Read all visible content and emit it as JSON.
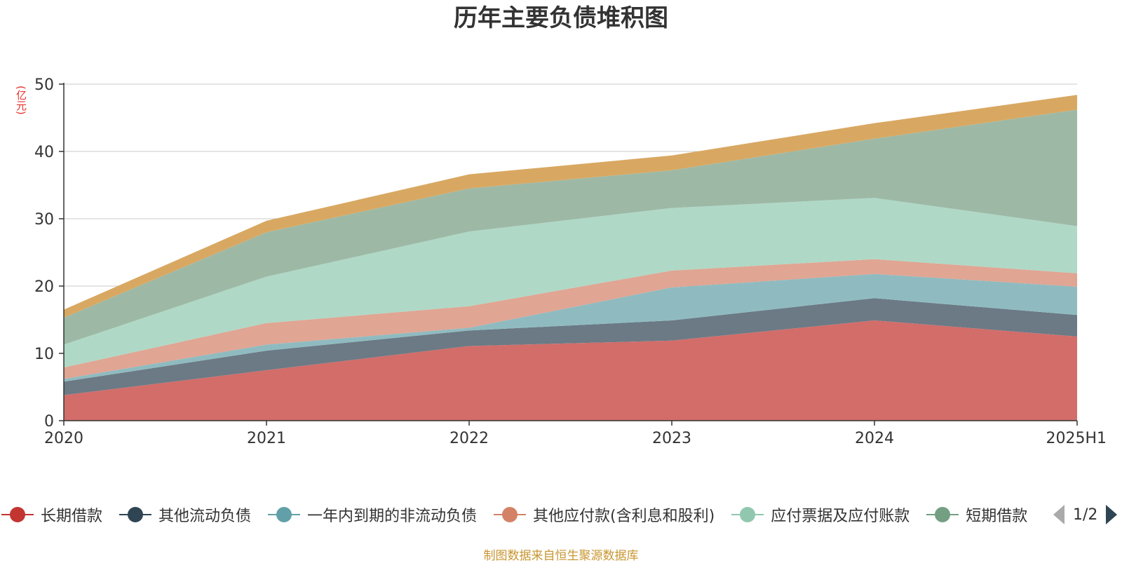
{
  "title": "历年主要负债堆积图",
  "unit_label": "(亿元)",
  "source_note": "制图数据来自恒生聚源数据库",
  "pager": {
    "text": "1/2"
  },
  "chart_data": {
    "type": "area",
    "stacked": true,
    "categories": [
      "2020",
      "2021",
      "2022",
      "2023",
      "2024",
      "2025H1"
    ],
    "ylim": [
      0,
      50
    ],
    "yticks": [
      0,
      10,
      20,
      30,
      40,
      50
    ],
    "grid": true,
    "legend_position": "bottom",
    "series": [
      {
        "name": "长期借款",
        "color": "#d26d6a",
        "legend_color": "#c23531",
        "values": [
          3.8,
          7.5,
          11.1,
          11.9,
          14.9,
          12.5
        ]
      },
      {
        "name": "其他流动负债",
        "color": "#6b7a85",
        "legend_color": "#2f4554",
        "values": [
          2.0,
          2.9,
          2.3,
          3.0,
          3.3,
          3.2
        ]
      },
      {
        "name": "一年内到期的非流动负债",
        "color": "#8fbbc0",
        "legend_color": "#61a0a8",
        "values": [
          0.4,
          0.9,
          0.4,
          4.9,
          3.6,
          4.2
        ]
      },
      {
        "name": "其他应付款(含利息和股利)",
        "color": "#e0a593",
        "legend_color": "#d48265",
        "values": [
          1.7,
          3.2,
          3.2,
          2.5,
          2.2,
          2.0
        ]
      },
      {
        "name": "应付票据及应付账款",
        "color": "#b0d8c6",
        "legend_color": "#91c7ae",
        "values": [
          3.4,
          6.9,
          11.1,
          9.3,
          9.1,
          7.0
        ]
      },
      {
        "name": "短期借款",
        "color": "#9db9a6",
        "legend_color": "#749f83",
        "values": [
          4.0,
          6.6,
          6.4,
          5.6,
          8.8,
          17.3
        ]
      },
      {
        "color": "#d8a862",
        "values": [
          1.2,
          1.7,
          2.1,
          2.2,
          2.3,
          2.2
        ]
      }
    ]
  }
}
